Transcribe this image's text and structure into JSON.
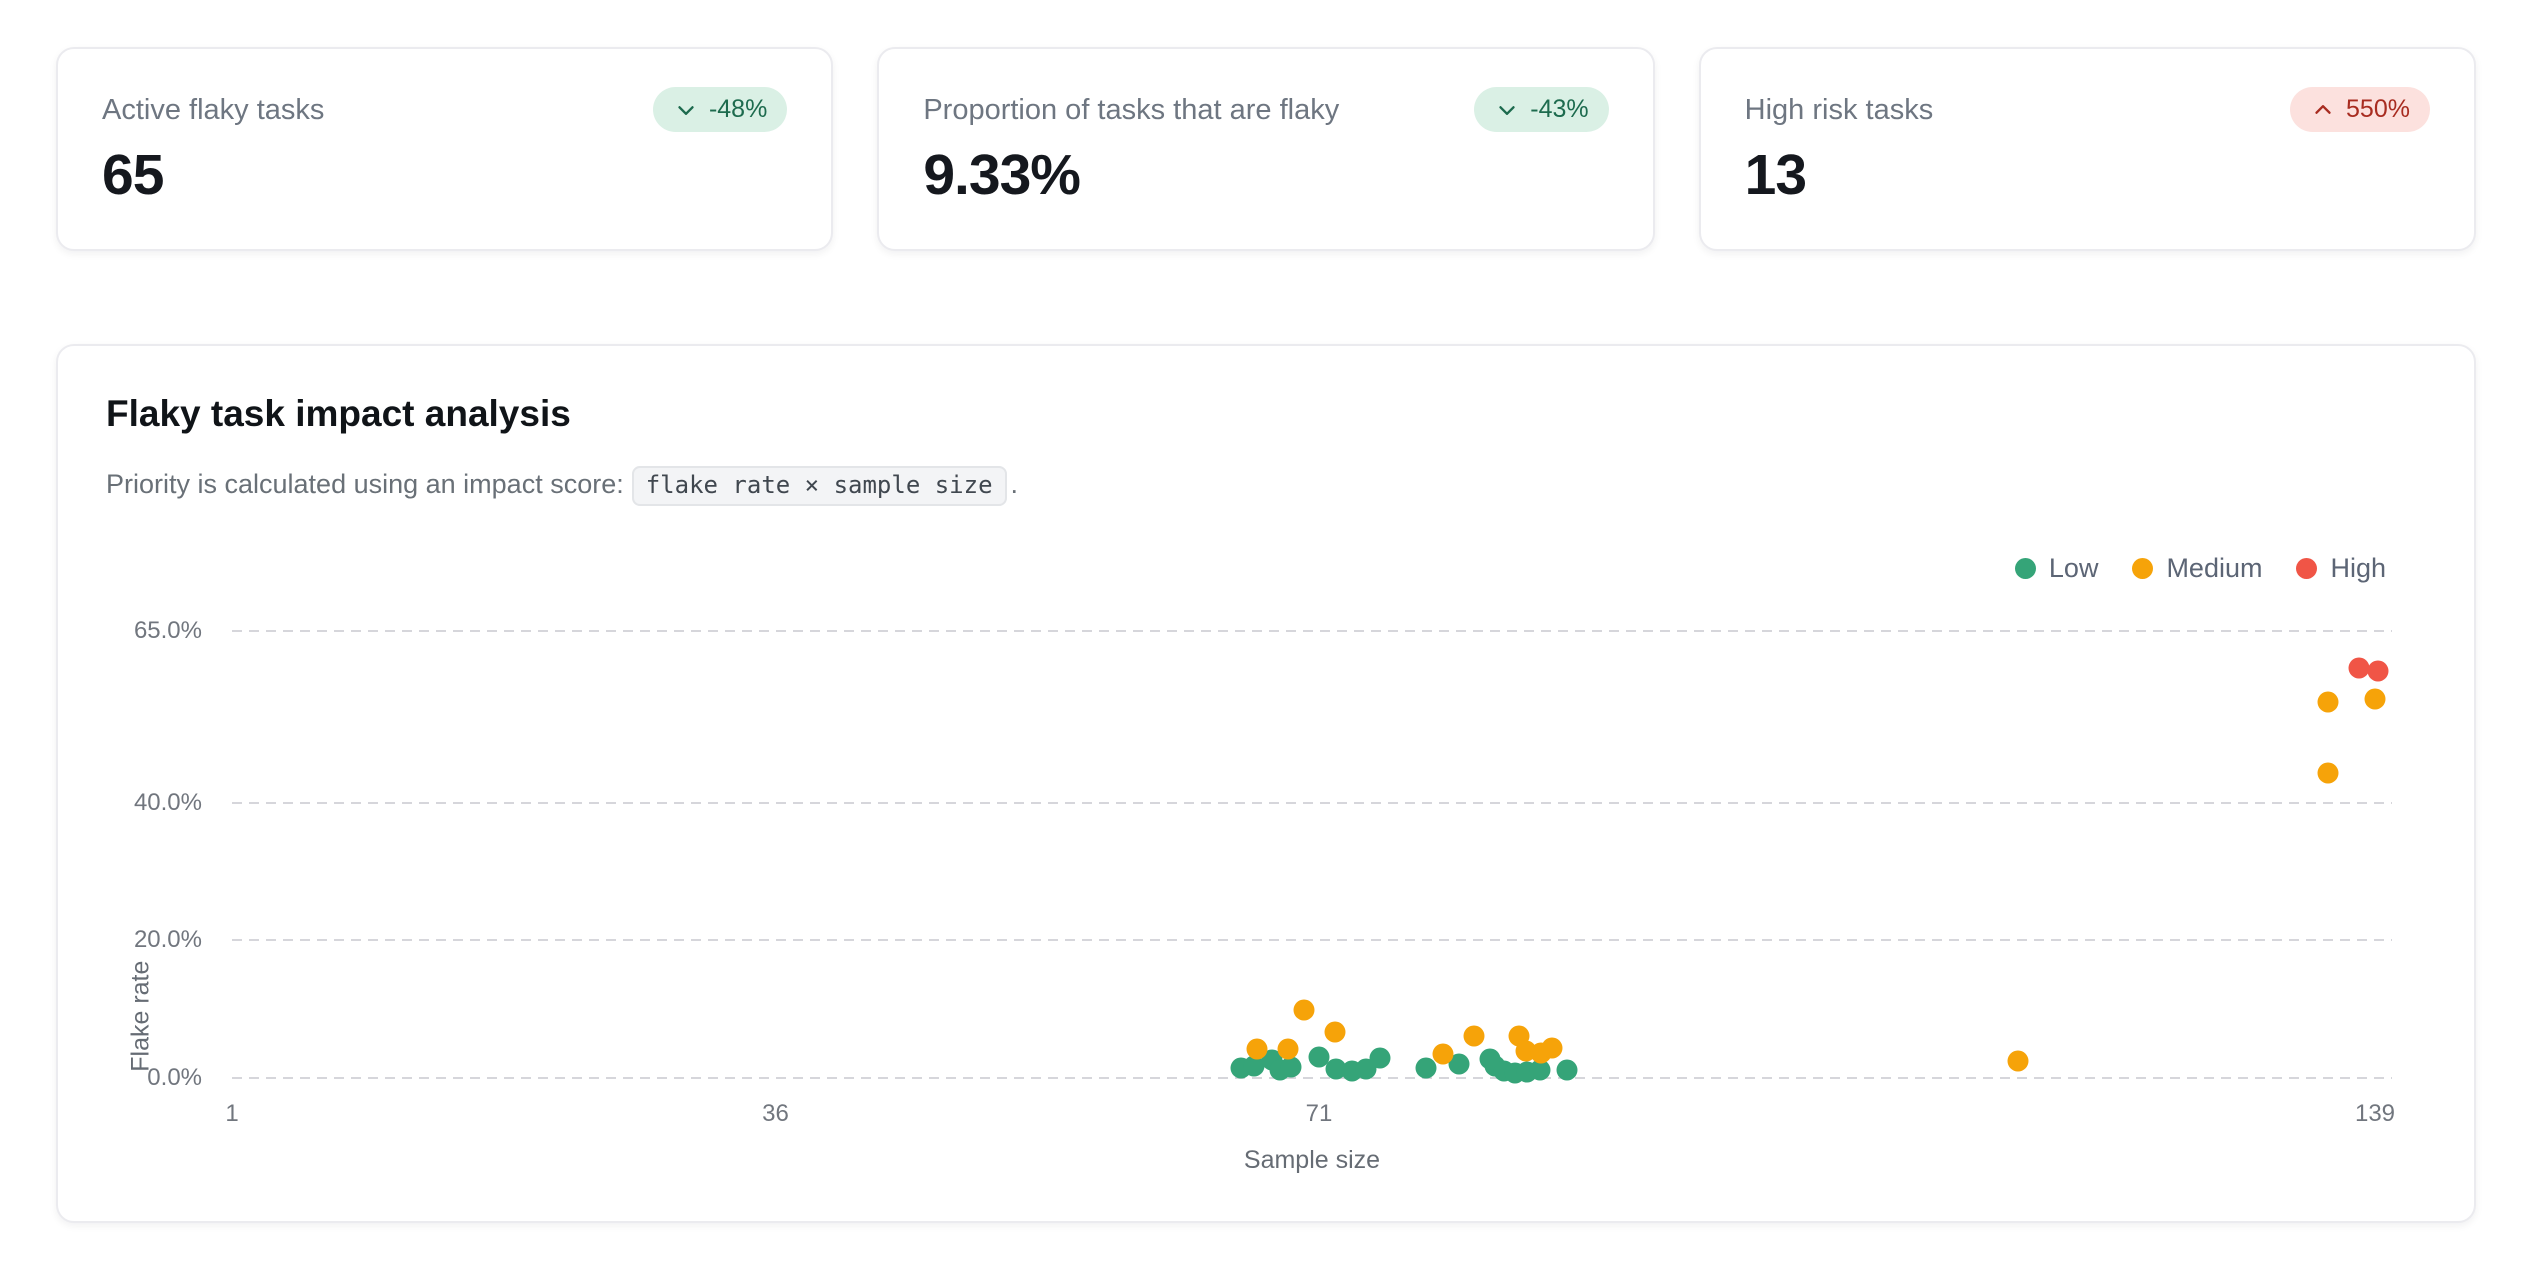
{
  "stats": {
    "cards": [
      {
        "label": "Active flaky tasks",
        "value": "65",
        "badge": {
          "text": "-48%",
          "direction": "down",
          "tone": "positive",
          "icon": "chevron-down-icon"
        }
      },
      {
        "label": "Proportion of tasks that are flaky",
        "value": "9.33%",
        "badge": {
          "text": "-43%",
          "direction": "down",
          "tone": "positive",
          "icon": "chevron-down-icon"
        }
      },
      {
        "label": "High risk tasks",
        "value": "13",
        "badge": {
          "text": "550%",
          "direction": "up",
          "tone": "negative",
          "icon": "chevron-up-icon"
        }
      }
    ]
  },
  "chart_card": {
    "title": "Flaky task impact analysis",
    "subtitle_prefix": "Priority is calculated using an impact score:",
    "subtitle_code": "flake rate × sample size",
    "subtitle_suffix": "."
  },
  "chart_data": {
    "type": "scatter",
    "title": "Flaky task impact analysis",
    "xlabel": "Sample size",
    "ylabel": "Flake rate",
    "xlim": [
      1,
      139
    ],
    "ylim": [
      0,
      65
    ],
    "x_ticks": [
      1,
      36,
      71,
      139
    ],
    "x_tick_labels": [
      "1",
      "36",
      "71",
      "139"
    ],
    "y_ticks": [
      65,
      40,
      20,
      0
    ],
    "y_tick_labels": [
      "65.0%",
      "40.0%",
      "20.0%",
      "0.0%"
    ],
    "grid": "horizontal-dashed",
    "legend_position": "top-right",
    "series": [
      {
        "name": "Low",
        "color": "#35a478",
        "points": [
          [
            66,
            1.4
          ],
          [
            66.8,
            1.8
          ],
          [
            68,
            2.6
          ],
          [
            68.5,
            1.1
          ],
          [
            69.2,
            1.6
          ],
          [
            71,
            3.0
          ],
          [
            72.1,
            1.3
          ],
          [
            73.1,
            1.0
          ],
          [
            74,
            1.3
          ],
          [
            74.9,
            2.9
          ],
          [
            77.9,
            1.4
          ],
          [
            80,
            2.1
          ],
          [
            82,
            2.8
          ],
          [
            82.3,
            1.7
          ],
          [
            82.9,
            1.0
          ],
          [
            83.6,
            0.7
          ],
          [
            84.4,
            0.9
          ],
          [
            85.2,
            1.2
          ],
          [
            87,
            1.2
          ]
        ]
      },
      {
        "name": "Medium",
        "color": "#f6a309",
        "points": [
          [
            67,
            4.2
          ],
          [
            69,
            4.2
          ],
          [
            70,
            9.9
          ],
          [
            72,
            6.7
          ],
          [
            79,
            3.5
          ],
          [
            81,
            6.1
          ],
          [
            83.9,
            6.1
          ],
          [
            84.3,
            3.9
          ],
          [
            85.3,
            3.6
          ],
          [
            86,
            4.4
          ],
          [
            116,
            2.5
          ],
          [
            136,
            44.3
          ],
          [
            136,
            54.7
          ],
          [
            139,
            55.1
          ]
        ]
      },
      {
        "name": "High",
        "color": "#f05546",
        "points": [
          [
            138,
            59.6
          ],
          [
            139.2,
            59.2
          ]
        ]
      }
    ]
  },
  "colors": {
    "badge_positive_bg": "#daf0e5",
    "badge_positive_text": "#1d6b4e",
    "badge_negative_bg": "#fce1de",
    "badge_negative_text": "#a82c20",
    "gridline": "#d6d6db",
    "low": "#35a478",
    "medium": "#f6a309",
    "high": "#f05546"
  }
}
